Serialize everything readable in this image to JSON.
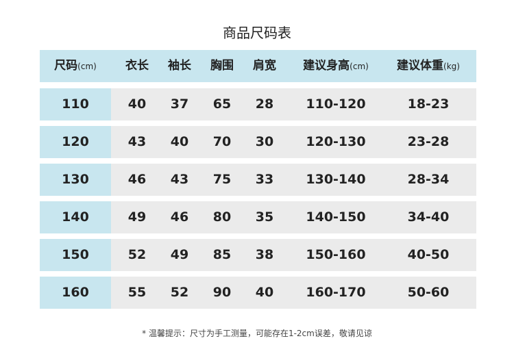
{
  "title": "商品尺码表",
  "headers": [
    {
      "label": "尺码",
      "unit": "(cm)"
    },
    {
      "label": "衣长",
      "unit": ""
    },
    {
      "label": "袖长",
      "unit": ""
    },
    {
      "label": "胸围",
      "unit": ""
    },
    {
      "label": "肩宽",
      "unit": ""
    },
    {
      "label": "建议身高",
      "unit": "(cm)"
    },
    {
      "label": "建议体重",
      "unit": "(kg)"
    }
  ],
  "rows": [
    [
      "110",
      "40",
      "37",
      "65",
      "28",
      "110-120",
      "18-23"
    ],
    [
      "120",
      "43",
      "40",
      "70",
      "30",
      "120-130",
      "23-28"
    ],
    [
      "130",
      "46",
      "43",
      "75",
      "33",
      "130-140",
      "28-34"
    ],
    [
      "140",
      "49",
      "46",
      "80",
      "35",
      "140-150",
      "34-40"
    ],
    [
      "150",
      "52",
      "49",
      "85",
      "38",
      "150-160",
      "40-50"
    ],
    [
      "160",
      "55",
      "52",
      "90",
      "40",
      "160-170",
      "50-60"
    ]
  ],
  "note": "* 温馨提示：尺寸为手工测量，可能存在1-2cm误差，敬请见谅",
  "colors": {
    "header_bg": "#c8e6ef",
    "row_bg": "#ebebeb"
  }
}
